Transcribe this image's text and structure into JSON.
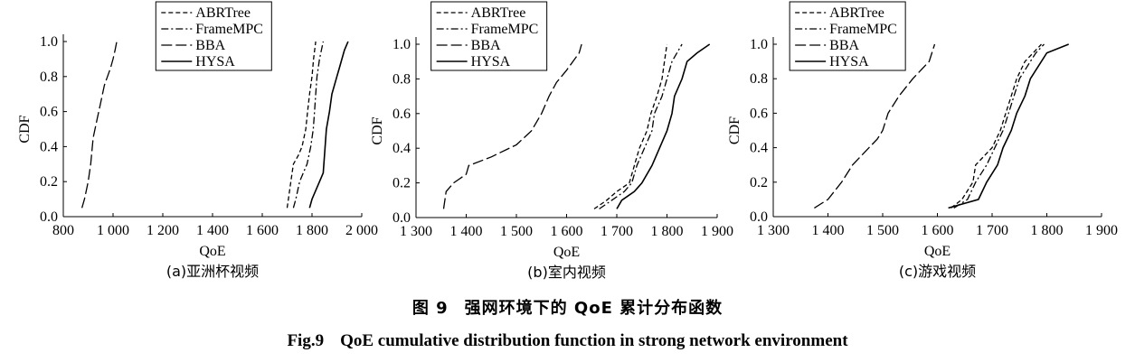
{
  "caption_cn": {
    "label": "图 9",
    "text": "强网环境下的 QoE 累计分布函数"
  },
  "caption_en": {
    "label": "Fig.9",
    "text": "QoE cumulative distribution function in strong network environment"
  },
  "chart_data": [
    {
      "type": "line",
      "subtitle": "(a)亚洲杯视频",
      "xlabel": "QoE",
      "ylabel": "CDF",
      "xlim": [
        800,
        2000
      ],
      "ylim": [
        0,
        1.0
      ],
      "xticks": [
        800,
        1000,
        1200,
        1400,
        1600,
        1800,
        2000
      ],
      "xtick_labels": [
        "800",
        "1 000",
        "1 200",
        "1 400",
        "1 600",
        "1 800",
        "2 000"
      ],
      "yticks": [
        0,
        0.2,
        0.4,
        0.6,
        0.8,
        1.0
      ],
      "ytick_labels": [
        "0.0",
        "0.2",
        "0.4",
        "0.6",
        "0.8",
        "1.0"
      ],
      "legend": "top-center",
      "series": [
        {
          "name": "ABRTree",
          "style": "dashed",
          "points": [
            [
              1700,
              0.05
            ],
            [
              1705,
              0.1
            ],
            [
              1715,
              0.2
            ],
            [
              1725,
              0.3
            ],
            [
              1745,
              0.35
            ],
            [
              1760,
              0.4
            ],
            [
              1775,
              0.5
            ],
            [
              1782,
              0.6
            ],
            [
              1790,
              0.7
            ],
            [
              1800,
              0.8
            ],
            [
              1806,
              0.9
            ],
            [
              1815,
              1.0
            ]
          ]
        },
        {
          "name": "FrameMPC",
          "style": "dashdot",
          "points": [
            [
              1725,
              0.05
            ],
            [
              1735,
              0.1
            ],
            [
              1750,
              0.2
            ],
            [
              1780,
              0.3
            ],
            [
              1795,
              0.4
            ],
            [
              1805,
              0.5
            ],
            [
              1810,
              0.6
            ],
            [
              1815,
              0.7
            ],
            [
              1820,
              0.8
            ],
            [
              1830,
              0.9
            ],
            [
              1845,
              1.0
            ]
          ]
        },
        {
          "name": "BBA",
          "style": "longdash",
          "points": [
            [
              875,
              0.05
            ],
            [
              885,
              0.1
            ],
            [
              900,
              0.2
            ],
            [
              910,
              0.3
            ],
            [
              920,
              0.45
            ],
            [
              935,
              0.55
            ],
            [
              950,
              0.65
            ],
            [
              965,
              0.75
            ],
            [
              990,
              0.85
            ],
            [
              1000,
              0.9
            ],
            [
              1008,
              0.95
            ],
            [
              1015,
              1.0
            ]
          ]
        },
        {
          "name": "HYSA",
          "style": "solid",
          "points": [
            [
              1790,
              0.05
            ],
            [
              1800,
              0.1
            ],
            [
              1830,
              0.2
            ],
            [
              1845,
              0.25
            ],
            [
              1850,
              0.35
            ],
            [
              1858,
              0.5
            ],
            [
              1870,
              0.6
            ],
            [
              1880,
              0.7
            ],
            [
              1900,
              0.8
            ],
            [
              1910,
              0.85
            ],
            [
              1930,
              0.95
            ],
            [
              1945,
              1.0
            ]
          ]
        }
      ]
    },
    {
      "type": "line",
      "subtitle": "(b)室内视频",
      "xlabel": "QoE",
      "ylabel": "CDF",
      "xlim": [
        1300,
        1900
      ],
      "ylim": [
        0,
        1.0
      ],
      "xticks": [
        1300,
        1400,
        1500,
        1600,
        1700,
        1800,
        1900
      ],
      "xtick_labels": [
        "1 300",
        "1 400",
        "1 500",
        "1 600",
        "1 700",
        "1 800",
        "1 900"
      ],
      "yticks": [
        0,
        0.2,
        0.4,
        0.6,
        0.8,
        1.0
      ],
      "ytick_labels": [
        "0.0",
        "0.2",
        "0.4",
        "0.6",
        "0.8",
        "1.0"
      ],
      "legend": "top-center",
      "series": [
        {
          "name": "ABRTree",
          "style": "dashed",
          "points": [
            [
              1655,
              0.05
            ],
            [
              1680,
              0.1
            ],
            [
              1700,
              0.15
            ],
            [
              1725,
              0.2
            ],
            [
              1735,
              0.3
            ],
            [
              1745,
              0.4
            ],
            [
              1760,
              0.5
            ],
            [
              1768,
              0.6
            ],
            [
              1780,
              0.7
            ],
            [
              1790,
              0.8
            ],
            [
              1795,
              0.9
            ],
            [
              1800,
              1.0
            ]
          ]
        },
        {
          "name": "FrameMPC",
          "style": "dashdot",
          "points": [
            [
              1665,
              0.05
            ],
            [
              1690,
              0.1
            ],
            [
              1715,
              0.15
            ],
            [
              1730,
              0.2
            ],
            [
              1740,
              0.3
            ],
            [
              1755,
              0.4
            ],
            [
              1770,
              0.5
            ],
            [
              1775,
              0.6
            ],
            [
              1790,
              0.7
            ],
            [
              1800,
              0.8
            ],
            [
              1810,
              0.9
            ],
            [
              1830,
              1.0
            ]
          ]
        },
        {
          "name": "BBA",
          "style": "longdash",
          "points": [
            [
              1355,
              0.05
            ],
            [
              1360,
              0.15
            ],
            [
              1375,
              0.2
            ],
            [
              1400,
              0.25
            ],
            [
              1405,
              0.3
            ],
            [
              1450,
              0.35
            ],
            [
              1500,
              0.42
            ],
            [
              1530,
              0.5
            ],
            [
              1550,
              0.6
            ],
            [
              1565,
              0.7
            ],
            [
              1580,
              0.78
            ],
            [
              1600,
              0.85
            ],
            [
              1625,
              0.95
            ],
            [
              1630,
              1.0
            ]
          ]
        },
        {
          "name": "HYSA",
          "style": "solid",
          "points": [
            [
              1700,
              0.05
            ],
            [
              1710,
              0.1
            ],
            [
              1735,
              0.15
            ],
            [
              1750,
              0.2
            ],
            [
              1770,
              0.3
            ],
            [
              1785,
              0.4
            ],
            [
              1800,
              0.5
            ],
            [
              1810,
              0.6
            ],
            [
              1815,
              0.7
            ],
            [
              1830,
              0.8
            ],
            [
              1840,
              0.9
            ],
            [
              1860,
              0.95
            ],
            [
              1885,
              1.0
            ]
          ]
        }
      ]
    },
    {
      "type": "line",
      "subtitle": "(c)游戏视频",
      "xlabel": "QoE",
      "ylabel": "CDF",
      "xlim": [
        1300,
        1900
      ],
      "ylim": [
        0,
        1.0
      ],
      "xticks": [
        1300,
        1400,
        1500,
        1600,
        1700,
        1800,
        1900
      ],
      "xtick_labels": [
        "1 300",
        "1 400",
        "1 500",
        "1 600",
        "1 700",
        "1 800",
        "1 900"
      ],
      "yticks": [
        0,
        0.2,
        0.4,
        0.6,
        0.8,
        1.0
      ],
      "ytick_labels": [
        "0.0",
        "0.2",
        "0.4",
        "0.6",
        "0.8",
        "1.0"
      ],
      "legend": "top-center",
      "series": [
        {
          "name": "ABRTree",
          "style": "dashed",
          "points": [
            [
              1625,
              0.05
            ],
            [
              1645,
              0.1
            ],
            [
              1665,
              0.2
            ],
            [
              1670,
              0.3
            ],
            [
              1700,
              0.4
            ],
            [
              1715,
              0.5
            ],
            [
              1725,
              0.6
            ],
            [
              1735,
              0.7
            ],
            [
              1745,
              0.8
            ],
            [
              1760,
              0.9
            ],
            [
              1775,
              0.95
            ],
            [
              1790,
              1.0
            ]
          ]
        },
        {
          "name": "FrameMPC",
          "style": "dashdot",
          "points": [
            [
              1630,
              0.05
            ],
            [
              1655,
              0.1
            ],
            [
              1670,
              0.2
            ],
            [
              1690,
              0.3
            ],
            [
              1705,
              0.4
            ],
            [
              1720,
              0.5
            ],
            [
              1730,
              0.6
            ],
            [
              1740,
              0.7
            ],
            [
              1750,
              0.8
            ],
            [
              1770,
              0.9
            ],
            [
              1780,
              0.95
            ],
            [
              1795,
              1.0
            ]
          ]
        },
        {
          "name": "BBA",
          "style": "longdash",
          "points": [
            [
              1375,
              0.05
            ],
            [
              1400,
              0.1
            ],
            [
              1425,
              0.2
            ],
            [
              1445,
              0.3
            ],
            [
              1475,
              0.4
            ],
            [
              1490,
              0.45
            ],
            [
              1500,
              0.5
            ],
            [
              1510,
              0.6
            ],
            [
              1530,
              0.7
            ],
            [
              1555,
              0.8
            ],
            [
              1585,
              0.9
            ],
            [
              1595,
              1.0
            ]
          ]
        },
        {
          "name": "HYSA",
          "style": "solid",
          "points": [
            [
              1620,
              0.05
            ],
            [
              1675,
              0.1
            ],
            [
              1690,
              0.2
            ],
            [
              1710,
              0.3
            ],
            [
              1720,
              0.4
            ],
            [
              1735,
              0.5
            ],
            [
              1745,
              0.6
            ],
            [
              1760,
              0.7
            ],
            [
              1770,
              0.8
            ],
            [
              1790,
              0.9
            ],
            [
              1800,
              0.95
            ],
            [
              1840,
              1.0
            ]
          ]
        }
      ]
    }
  ]
}
